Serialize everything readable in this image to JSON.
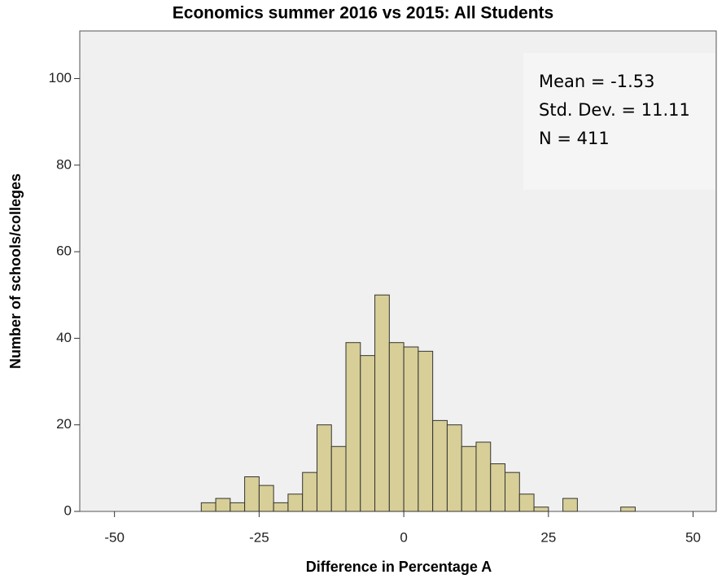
{
  "chart_data": {
    "type": "histogram",
    "title": "Economics summer 2016 vs 2015: All Students",
    "x_label": "Difference in Percentage A",
    "y_label": "Number of schools/colleges",
    "annotations": [
      "Mean = -1.53",
      "Std. Dev. = 11.11",
      "N = 411"
    ],
    "bins": [
      -35,
      -32.5,
      -30,
      -27.5,
      -25,
      -22.5,
      -20,
      -17.5,
      -15,
      -12.5,
      -10,
      -7.5,
      -5,
      -2.5,
      0,
      2.5,
      5,
      7.5,
      10,
      12.5,
      15,
      17.5,
      20,
      22.5,
      25,
      27.5,
      30,
      32.5,
      35,
      37.5,
      40
    ],
    "counts": [
      2,
      3,
      2,
      8,
      6,
      2,
      4,
      9,
      20,
      15,
      39,
      36,
      50,
      39,
      38,
      37,
      21,
      20,
      15,
      16,
      11,
      9,
      4,
      1,
      0,
      3,
      0,
      0,
      0,
      1
    ],
    "color": "#d8cf98",
    "xlim": [
      -56,
      54
    ],
    "xticks": [
      -50,
      -25,
      0,
      25,
      50
    ],
    "ylim": [
      0,
      111
    ],
    "yticks": [
      0,
      20,
      40,
      60,
      80,
      100
    ],
    "grid": false
  }
}
